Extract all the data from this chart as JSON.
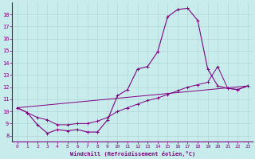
{
  "xlabel": "Windchill (Refroidissement éolien,°C)",
  "background_color": "#c8ecec",
  "line_color": "#800080",
  "grid_color": "#b0d8d8",
  "xlim": [
    -0.5,
    23.5
  ],
  "ylim": [
    7.5,
    19.0
  ],
  "yticks": [
    8,
    9,
    10,
    11,
    12,
    13,
    14,
    15,
    16,
    17,
    18
  ],
  "xticks": [
    0,
    1,
    2,
    3,
    4,
    5,
    6,
    7,
    8,
    9,
    10,
    11,
    12,
    13,
    14,
    15,
    16,
    17,
    18,
    19,
    20,
    21,
    22,
    23
  ],
  "line1_x": [
    0,
    1,
    2,
    3,
    4,
    5,
    6,
    7,
    8,
    9,
    10,
    11,
    12,
    13,
    14,
    15,
    16,
    17,
    18,
    19,
    20,
    21,
    22,
    23
  ],
  "line1_y": [
    10.3,
    9.9,
    8.9,
    8.2,
    8.5,
    8.4,
    8.5,
    8.3,
    8.3,
    9.3,
    11.3,
    11.8,
    13.5,
    13.7,
    14.9,
    17.8,
    18.4,
    18.5,
    17.5,
    13.5,
    12.1,
    11.9,
    11.8,
    12.1
  ],
  "line2_x": [
    0,
    1,
    2,
    3,
    4,
    5,
    6,
    7,
    8,
    9,
    10,
    11,
    12,
    13,
    14,
    15,
    16,
    17,
    18,
    19,
    20,
    21,
    22,
    23
  ],
  "line2_y": [
    10.3,
    9.9,
    9.5,
    9.3,
    8.9,
    8.9,
    9.0,
    9.0,
    9.2,
    9.5,
    10.0,
    10.3,
    10.6,
    10.9,
    11.1,
    11.4,
    11.7,
    12.0,
    12.2,
    12.4,
    13.7,
    11.9,
    11.8,
    12.1
  ],
  "line3_x": [
    0,
    23
  ],
  "line3_y": [
    10.3,
    12.1
  ]
}
